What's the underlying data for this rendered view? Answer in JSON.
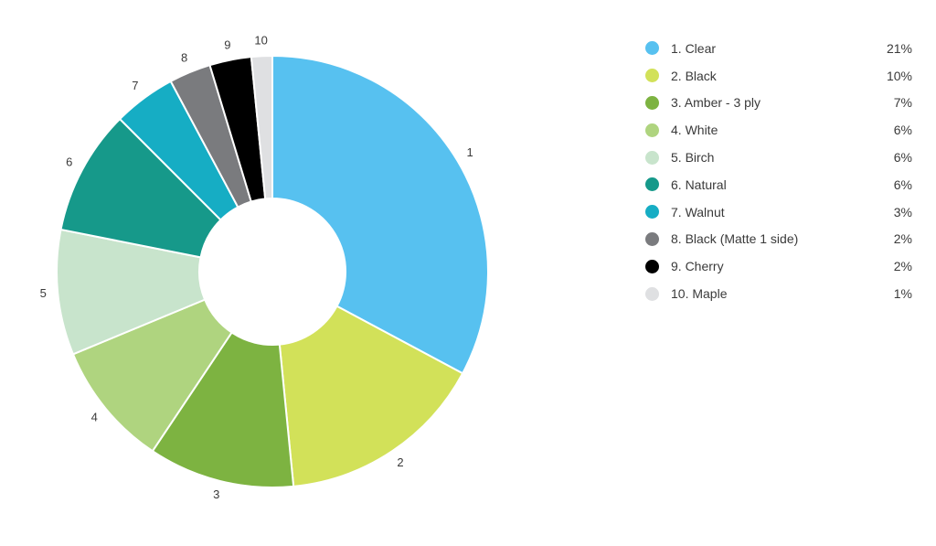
{
  "chart_data": {
    "type": "pie",
    "style": "donut",
    "legend_position": "right",
    "series": [
      {
        "label": "1",
        "name": "1. Clear",
        "percent": "21%",
        "value": 21,
        "color": "#57c1f0"
      },
      {
        "label": "2",
        "name": "2. Black",
        "percent": "10%",
        "value": 10,
        "color": "#d2e159"
      },
      {
        "label": "3",
        "name": "3. Amber - 3 ply",
        "percent": "7%",
        "value": 7,
        "color": "#7db341"
      },
      {
        "label": "4",
        "name": "4. White",
        "percent": "6%",
        "value": 6,
        "color": "#afd47f"
      },
      {
        "label": "5",
        "name": "5. Birch",
        "percent": "6%",
        "value": 6,
        "color": "#c8e4cc"
      },
      {
        "label": "6",
        "name": "6. Natural",
        "percent": "6%",
        "value": 6,
        "color": "#16998a"
      },
      {
        "label": "7",
        "name": "7. Walnut",
        "percent": "3%",
        "value": 3,
        "color": "#16adc4"
      },
      {
        "label": "8",
        "name": "8. Black (Matte 1 side)",
        "percent": "2%",
        "value": 2,
        "color": "#7a7b7e"
      },
      {
        "label": "9",
        "name": "9. Cherry",
        "percent": "2%",
        "value": 2,
        "color": "#000000"
      },
      {
        "label": "10",
        "name": "10. Maple",
        "percent": "1%",
        "value": 1,
        "color": "#dfe0e2"
      }
    ]
  }
}
